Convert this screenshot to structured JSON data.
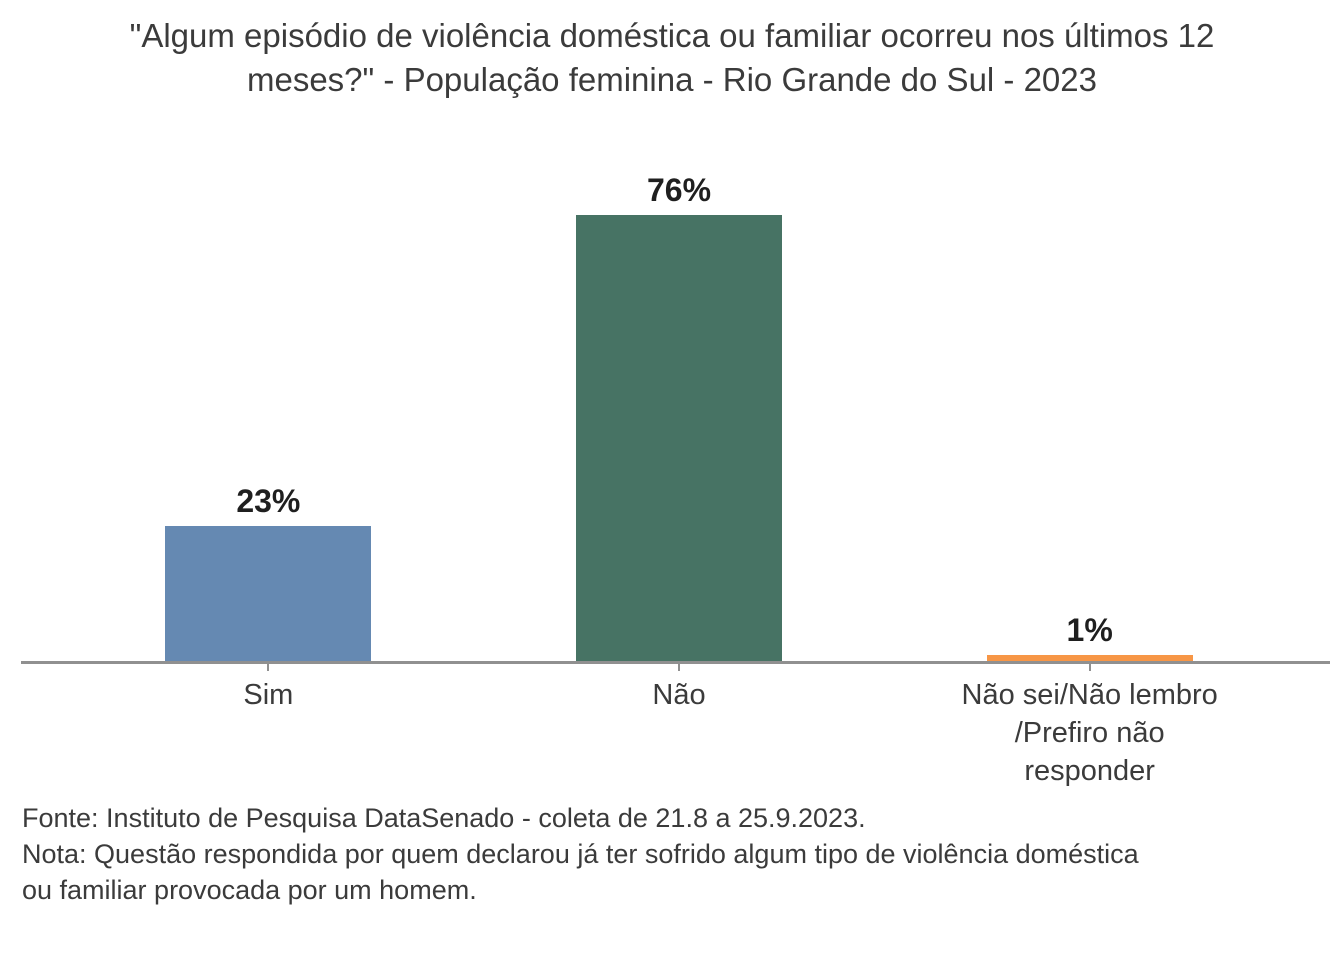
{
  "title": "\"Algum episódio de violência doméstica ou familiar ocorreu nos últimos 12 meses?\" - População feminina - Rio Grande do Sul - 2023",
  "chart_data": {
    "type": "bar",
    "title": "\"Algum episódio de violência doméstica ou familiar ocorreu nos últimos 12 meses?\" - População feminina - Rio Grande do Sul - 2023",
    "categories": [
      "Sim",
      "Não",
      "Não sei/Não lembro /Prefiro não responder"
    ],
    "values": [
      23,
      76,
      1
    ],
    "value_labels": [
      "23%",
      "76%",
      "1%"
    ],
    "bar_colors": [
      "#6589B2",
      "#477364",
      "#F79646"
    ],
    "xlabel": "",
    "ylabel": "",
    "ylim": [
      0,
      80
    ],
    "grid": false,
    "legend": "none",
    "axis_color": "#909090",
    "label_color": "#3B3B3B",
    "value_label_color": "#1F1F1F"
  },
  "footer": {
    "source": "Fonte: Instituto de Pesquisa DataSenado - coleta de 21.8 a 25.9.2023.",
    "note": "Nota: Questão respondida por quem declarou já ter sofrido algum tipo de violência doméstica ou familiar provocada por um homem."
  }
}
